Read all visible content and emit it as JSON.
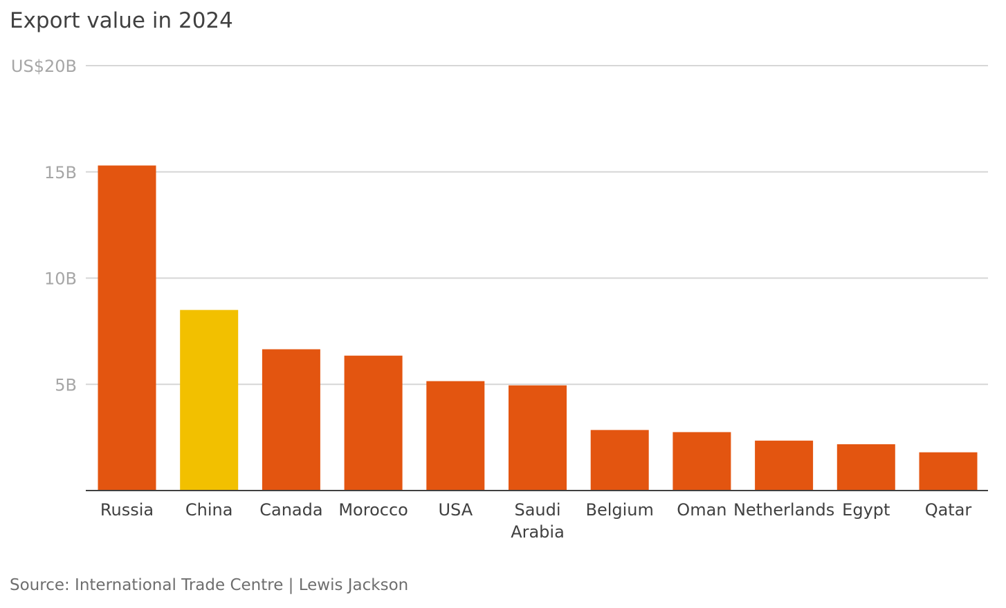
{
  "chart_data": {
    "type": "bar",
    "title": "Export value in 2024",
    "source": "Source: International Trade Centre | Lewis Jackson",
    "ylabel": "",
    "xlabel": "",
    "ylim": [
      0,
      20
    ],
    "yticks": [
      {
        "value": 20,
        "label": "US$20B"
      },
      {
        "value": 15,
        "label": "15B"
      },
      {
        "value": 10,
        "label": "10B"
      },
      {
        "value": 5,
        "label": "5B"
      }
    ],
    "grid": true,
    "categories": [
      "Russia",
      "China",
      "Canada",
      "Morocco",
      "USA",
      "Saudi Arabia",
      "Belgium",
      "Oman",
      "Netherlands",
      "Egypt",
      "Qatar"
    ],
    "category_label_lines": [
      [
        "Russia"
      ],
      [
        "China"
      ],
      [
        "Canada"
      ],
      [
        "Morocco"
      ],
      [
        "USA"
      ],
      [
        "Saudi",
        "Arabia"
      ],
      [
        "Belgium"
      ],
      [
        "Oman"
      ],
      [
        "Netherlands"
      ],
      [
        "Egypt"
      ],
      [
        "Qatar"
      ]
    ],
    "values": [
      15.3,
      8.5,
      6.65,
      6.35,
      5.15,
      4.95,
      2.85,
      2.75,
      2.35,
      2.18,
      1.8
    ],
    "colors": {
      "default": "#e35510",
      "highlight": "#f2c000",
      "highlight_category": "China",
      "grid": "#d6d6d6",
      "axis": "#404040"
    }
  }
}
